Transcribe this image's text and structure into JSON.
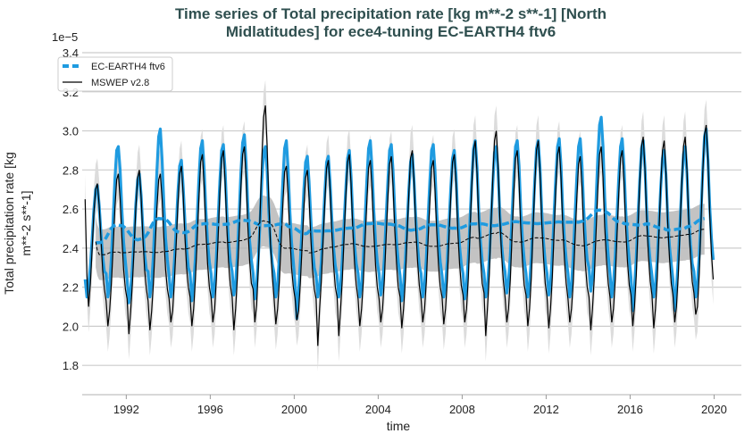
{
  "chart_data": {
    "type": "line",
    "title_line1": "Time series of Total precipitation rate [kg m**-2 s**-1] [North",
    "title_line2": "Midlatitudes] for ece4-tuning EC-EARTH4 ftv6",
    "xlabel": "time",
    "ylabel_line1": "Total precipitation rate [kg",
    "ylabel_line2": "m**-2 s**-1]",
    "y_offset_label": "1e−5",
    "ylim": [
      1.65,
      3.4
    ],
    "xlim": [
      1989.9,
      2021.3
    ],
    "y_ticks": [
      "1.8",
      "2.0",
      "2.2",
      "2.4",
      "2.6",
      "2.8",
      "3.0",
      "3.2",
      "3.4"
    ],
    "x_ticks": [
      "1992",
      "1996",
      "2000",
      "2004",
      "2008",
      "2012",
      "2016",
      "2020"
    ],
    "grid": "horizontal",
    "legend_placement": "top-left",
    "start_year": 1990,
    "series": [
      {
        "name": "EC-EARTH4 ftv6",
        "color": "#1f9be0",
        "style": "thick solid monthly, dashed running annual mean",
        "monthly": [
          [
            2.24,
            2.15,
            2.2,
            2.31,
            2.45,
            2.6,
            2.7,
            2.72,
            2.62,
            2.48,
            2.36,
            2.28
          ],
          [
            2.27,
            2.15,
            2.21,
            2.35,
            2.55,
            2.75,
            2.9,
            2.92,
            2.8,
            2.59,
            2.43,
            2.33
          ],
          [
            2.24,
            2.12,
            2.19,
            2.3,
            2.46,
            2.63,
            2.75,
            2.78,
            2.67,
            2.5,
            2.37,
            2.29
          ],
          [
            2.28,
            2.15,
            2.22,
            2.36,
            2.58,
            2.79,
            2.97,
            3.01,
            2.85,
            2.62,
            2.45,
            2.34
          ],
          [
            2.26,
            2.15,
            2.21,
            2.33,
            2.5,
            2.68,
            2.82,
            2.85,
            2.72,
            2.54,
            2.4,
            2.3
          ],
          [
            2.27,
            2.13,
            2.21,
            2.35,
            2.55,
            2.75,
            2.91,
            2.95,
            2.81,
            2.59,
            2.43,
            2.33
          ],
          [
            2.27,
            2.15,
            2.21,
            2.35,
            2.55,
            2.74,
            2.9,
            2.93,
            2.8,
            2.58,
            2.43,
            2.33
          ],
          [
            2.28,
            2.16,
            2.22,
            2.36,
            2.57,
            2.78,
            2.94,
            2.98,
            2.84,
            2.61,
            2.44,
            2.34
          ],
          [
            2.27,
            2.14,
            2.21,
            2.35,
            2.54,
            2.74,
            2.89,
            2.92,
            2.8,
            2.58,
            2.42,
            2.32
          ],
          [
            2.27,
            2.15,
            2.21,
            2.35,
            2.55,
            2.75,
            2.91,
            2.95,
            2.81,
            2.59,
            2.43,
            2.33
          ],
          [
            2.22,
            2.04,
            2.18,
            2.33,
            2.51,
            2.7,
            2.84,
            2.87,
            2.74,
            2.55,
            2.4,
            2.3
          ],
          [
            2.26,
            2.15,
            2.21,
            2.33,
            2.51,
            2.69,
            2.84,
            2.87,
            2.74,
            2.55,
            2.4,
            2.31
          ],
          [
            2.26,
            2.15,
            2.21,
            2.34,
            2.53,
            2.71,
            2.86,
            2.9,
            2.77,
            2.56,
            2.41,
            2.32
          ],
          [
            2.27,
            2.15,
            2.21,
            2.35,
            2.55,
            2.75,
            2.91,
            2.95,
            2.81,
            2.59,
            2.43,
            2.33
          ],
          [
            2.27,
            2.16,
            2.22,
            2.35,
            2.55,
            2.74,
            2.9,
            2.93,
            2.8,
            2.59,
            2.43,
            2.33
          ],
          [
            2.26,
            2.13,
            2.21,
            2.34,
            2.52,
            2.7,
            2.84,
            2.88,
            2.75,
            2.55,
            2.41,
            2.31
          ],
          [
            2.27,
            2.15,
            2.21,
            2.35,
            2.55,
            2.74,
            2.9,
            2.93,
            2.8,
            2.58,
            2.43,
            2.33
          ],
          [
            2.26,
            2.15,
            2.21,
            2.34,
            2.53,
            2.71,
            2.86,
            2.9,
            2.77,
            2.56,
            2.41,
            2.32
          ],
          [
            2.27,
            2.14,
            2.21,
            2.35,
            2.55,
            2.75,
            2.91,
            2.95,
            2.81,
            2.59,
            2.43,
            2.33
          ],
          [
            2.27,
            2.15,
            2.21,
            2.35,
            2.54,
            2.73,
            2.89,
            2.92,
            2.79,
            2.58,
            2.42,
            2.33
          ],
          [
            2.28,
            2.17,
            2.23,
            2.36,
            2.56,
            2.76,
            2.92,
            2.95,
            2.82,
            2.6,
            2.44,
            2.34
          ],
          [
            2.27,
            2.15,
            2.21,
            2.35,
            2.55,
            2.75,
            2.91,
            2.95,
            2.81,
            2.59,
            2.43,
            2.33
          ],
          [
            2.27,
            2.16,
            2.22,
            2.36,
            2.56,
            2.76,
            2.92,
            2.96,
            2.82,
            2.6,
            2.44,
            2.34
          ],
          [
            2.27,
            2.15,
            2.21,
            2.36,
            2.56,
            2.76,
            2.92,
            2.96,
            2.82,
            2.6,
            2.44,
            2.34
          ],
          [
            2.3,
            2.18,
            2.25,
            2.4,
            2.63,
            2.86,
            3.03,
            3.07,
            2.92,
            2.66,
            2.48,
            2.36
          ],
          [
            2.27,
            2.15,
            2.22,
            2.36,
            2.56,
            2.76,
            2.92,
            2.96,
            2.82,
            2.6,
            2.44,
            2.34
          ],
          [
            2.25,
            2.08,
            2.2,
            2.35,
            2.55,
            2.75,
            2.91,
            2.95,
            2.81,
            2.59,
            2.43,
            2.33
          ],
          [
            2.26,
            2.15,
            2.21,
            2.34,
            2.53,
            2.71,
            2.86,
            2.9,
            2.77,
            2.56,
            2.41,
            2.32
          ],
          [
            2.24,
            2.08,
            2.19,
            2.34,
            2.53,
            2.72,
            2.88,
            2.92,
            2.78,
            2.57,
            2.42,
            2.32
          ],
          [
            2.28,
            2.15,
            2.22,
            2.36,
            2.58,
            2.79,
            2.97,
            3.01,
            2.85,
            2.62,
            2.45,
            2.34
          ]
        ]
      },
      {
        "name": "MSWEP v2.8",
        "color": "#000000",
        "style": "thin solid monthly, dashed running annual mean",
        "monthly": [
          [
            2.65,
            2.26,
            2.1,
            2.22,
            2.4,
            2.58,
            2.7,
            2.73,
            2.62,
            2.45,
            2.29,
            2.19
          ],
          [
            2.13,
            2.0,
            2.08,
            2.22,
            2.41,
            2.6,
            2.75,
            2.78,
            2.65,
            2.45,
            2.29,
            2.19
          ],
          [
            2.14,
            1.96,
            2.08,
            2.22,
            2.41,
            2.61,
            2.76,
            2.8,
            2.66,
            2.45,
            2.29,
            2.19
          ],
          [
            2.13,
            1.98,
            2.08,
            2.22,
            2.41,
            2.6,
            2.75,
            2.78,
            2.65,
            2.45,
            2.29,
            2.19
          ],
          [
            2.14,
            2.02,
            2.08,
            2.23,
            2.42,
            2.62,
            2.78,
            2.82,
            2.68,
            2.46,
            2.3,
            2.2
          ],
          [
            2.15,
            2.0,
            2.09,
            2.24,
            2.44,
            2.65,
            2.84,
            2.88,
            2.72,
            2.49,
            2.32,
            2.2
          ],
          [
            2.15,
            2.02,
            2.09,
            2.24,
            2.46,
            2.68,
            2.86,
            2.9,
            2.74,
            2.5,
            2.33,
            2.21
          ],
          [
            2.15,
            1.98,
            2.09,
            2.25,
            2.47,
            2.7,
            2.88,
            2.92,
            2.76,
            2.51,
            2.34,
            2.22
          ],
          [
            2.19,
            2.02,
            2.11,
            2.3,
            2.58,
            2.85,
            3.07,
            3.13,
            2.93,
            2.63,
            2.41,
            2.26
          ],
          [
            2.14,
            2.01,
            2.09,
            2.23,
            2.43,
            2.63,
            2.79,
            2.82,
            2.68,
            2.47,
            2.3,
            2.2
          ],
          [
            2.14,
            2.03,
            2.08,
            2.22,
            2.41,
            2.61,
            2.76,
            2.8,
            2.66,
            2.45,
            2.29,
            2.19
          ],
          [
            2.14,
            1.9,
            2.09,
            2.23,
            2.44,
            2.64,
            2.81,
            2.85,
            2.7,
            2.48,
            2.31,
            2.2
          ],
          [
            2.15,
            1.95,
            2.09,
            2.24,
            2.46,
            2.67,
            2.84,
            2.88,
            2.73,
            2.49,
            2.32,
            2.21
          ],
          [
            2.14,
            2.0,
            2.09,
            2.23,
            2.44,
            2.64,
            2.81,
            2.85,
            2.7,
            2.48,
            2.31,
            2.2
          ],
          [
            2.14,
            2.02,
            2.09,
            2.24,
            2.45,
            2.66,
            2.83,
            2.87,
            2.72,
            2.49,
            2.32,
            2.2
          ],
          [
            2.15,
            1.99,
            2.09,
            2.24,
            2.46,
            2.68,
            2.86,
            2.9,
            2.74,
            2.5,
            2.33,
            2.21
          ],
          [
            2.14,
            2.02,
            2.09,
            2.23,
            2.44,
            2.64,
            2.81,
            2.85,
            2.7,
            2.48,
            2.31,
            2.2
          ],
          [
            2.15,
            2.01,
            2.09,
            2.24,
            2.46,
            2.67,
            2.84,
            2.88,
            2.73,
            2.49,
            2.32,
            2.21
          ],
          [
            2.16,
            2.02,
            2.09,
            2.25,
            2.49,
            2.72,
            2.9,
            2.95,
            2.78,
            2.53,
            2.35,
            2.22
          ],
          [
            2.17,
            1.95,
            2.1,
            2.27,
            2.52,
            2.76,
            2.95,
            3.0,
            2.83,
            2.56,
            2.37,
            2.24
          ],
          [
            2.15,
            2.02,
            2.09,
            2.24,
            2.46,
            2.68,
            2.86,
            2.9,
            2.74,
            2.5,
            2.33,
            2.21
          ],
          [
            2.16,
            2.0,
            2.09,
            2.25,
            2.49,
            2.72,
            2.9,
            2.95,
            2.78,
            2.53,
            2.35,
            2.22
          ],
          [
            2.15,
            1.99,
            2.09,
            2.25,
            2.47,
            2.7,
            2.88,
            2.92,
            2.76,
            2.51,
            2.34,
            2.22
          ],
          [
            2.14,
            2.02,
            2.09,
            2.23,
            2.44,
            2.65,
            2.83,
            2.87,
            2.71,
            2.48,
            2.31,
            2.2
          ],
          [
            2.15,
            1.98,
            2.09,
            2.25,
            2.47,
            2.7,
            2.88,
            2.92,
            2.76,
            2.51,
            2.34,
            2.22
          ],
          [
            2.15,
            2.02,
            2.09,
            2.24,
            2.46,
            2.68,
            2.86,
            2.9,
            2.74,
            2.5,
            2.33,
            2.21
          ],
          [
            2.16,
            2.0,
            2.1,
            2.26,
            2.5,
            2.73,
            2.92,
            2.97,
            2.8,
            2.54,
            2.36,
            2.23
          ],
          [
            2.16,
            1.99,
            2.09,
            2.25,
            2.49,
            2.72,
            2.9,
            2.95,
            2.78,
            2.53,
            2.35,
            2.22
          ],
          [
            2.16,
            2.02,
            2.1,
            2.26,
            2.5,
            2.73,
            2.92,
            2.97,
            2.8,
            2.54,
            2.36,
            2.23
          ],
          [
            2.17,
            2.06,
            2.1,
            2.27,
            2.53,
            2.78,
            2.98,
            3.03,
            2.85,
            2.58,
            2.37,
            2.24
          ]
        ]
      }
    ]
  }
}
